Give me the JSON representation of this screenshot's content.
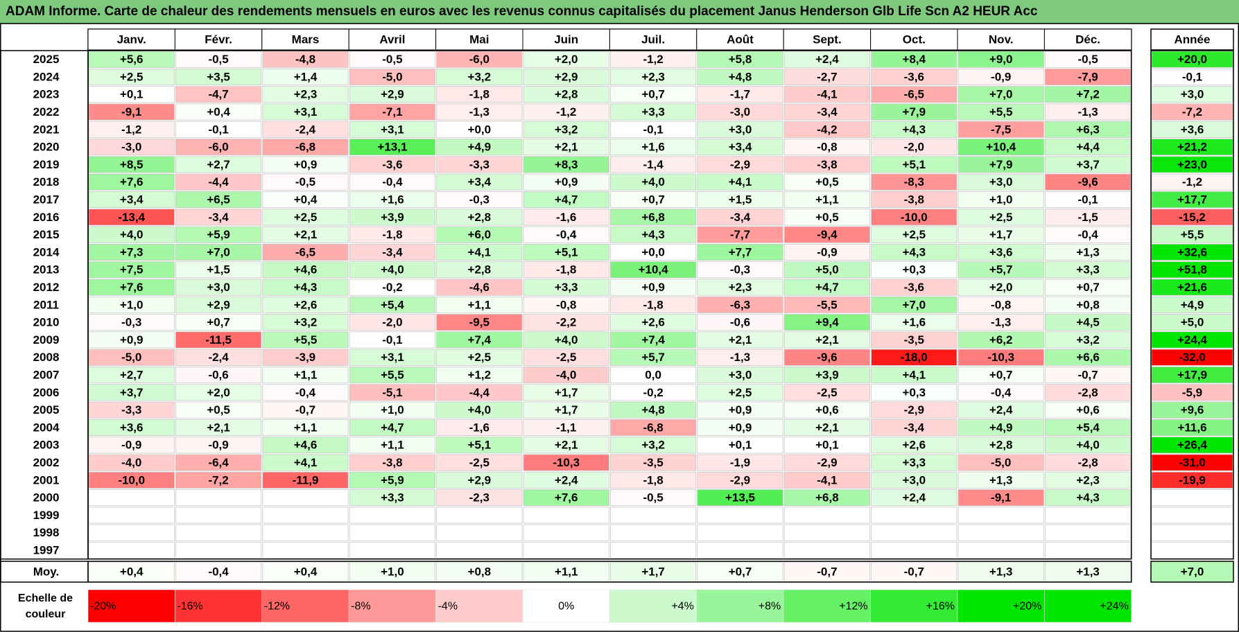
{
  "title": "ADAM Informe. Carte de chaleur des rendements mensuels en euros avec les revenus connus capitalisés du placement Janus Henderson Glb Life Scn A2 HEUR Acc",
  "chart_data": {
    "type": "heatmap",
    "months": [
      "Janv.",
      "Févr.",
      "Mars",
      "Avril",
      "Mai",
      "Juin",
      "Juil.",
      "Août",
      "Sept.",
      "Oct.",
      "Nov.",
      "Déc."
    ],
    "annual_header": "Année",
    "rows": [
      {
        "year": "2025",
        "months": [
          "+5,6",
          "-0,5",
          "-4,8",
          "-0,5",
          "-6,0",
          "+2,0",
          "-1,2",
          "+5,8",
          "+2,4",
          "+8,4",
          "+9,0",
          "-0,5"
        ],
        "annual": "+20,0"
      },
      {
        "year": "2024",
        "months": [
          "+2,5",
          "+3,5",
          "+1,4",
          "-5,0",
          "+3,2",
          "+2,9",
          "+2,3",
          "+4,8",
          "-2,7",
          "-3,6",
          "-0,9",
          "-7,9"
        ],
        "annual": "-0,1"
      },
      {
        "year": "2023",
        "months": [
          "+0,1",
          "-4,7",
          "+2,3",
          "+2,9",
          "-1,8",
          "+2,8",
          "+0,7",
          "-1,7",
          "-4,1",
          "-6,5",
          "+7,0",
          "+7,2"
        ],
        "annual": "+3,0"
      },
      {
        "year": "2022",
        "months": [
          "-9,1",
          "+0,4",
          "+3,1",
          "-7,1",
          "-1,3",
          "-1,2",
          "+3,3",
          "-3,0",
          "-3,4",
          "+7,9",
          "+5,5",
          "-1,3"
        ],
        "annual": "-7,2"
      },
      {
        "year": "2021",
        "months": [
          "-1,2",
          "-0,1",
          "-2,4",
          "+3,1",
          "+0,0",
          "+3,2",
          "-0,1",
          "+3,0",
          "-4,2",
          "+4,3",
          "-7,5",
          "+6,3"
        ],
        "annual": "+3,6"
      },
      {
        "year": "2020",
        "months": [
          "-3,0",
          "-6,0",
          "-6,8",
          "+13,1",
          "+4,9",
          "+2,1",
          "+1,6",
          "+3,4",
          "-0,8",
          "-2,0",
          "+10,4",
          "+4,4"
        ],
        "annual": "+21,2"
      },
      {
        "year": "2019",
        "months": [
          "+8,5",
          "+2,7",
          "+0,9",
          "-3,6",
          "-3,3",
          "+8,3",
          "-1,4",
          "-2,9",
          "-3,8",
          "+5,1",
          "+7,9",
          "+3,7"
        ],
        "annual": "+23,0"
      },
      {
        "year": "2018",
        "months": [
          "+7,6",
          "-4,4",
          "-0,5",
          "-0,4",
          "+3,4",
          "+0,9",
          "+4,0",
          "+4,1",
          "+0,5",
          "-8,3",
          "+3,0",
          "-9,6"
        ],
        "annual": "-1,2"
      },
      {
        "year": "2017",
        "months": [
          "+3,4",
          "+6,5",
          "+0,4",
          "+1,6",
          "-0,3",
          "+4,7",
          "+0,7",
          "+1,5",
          "+1,1",
          "-3,8",
          "+1,0",
          "-0,1"
        ],
        "annual": "+17,7"
      },
      {
        "year": "2016",
        "months": [
          "-13,4",
          "-3,4",
          "+2,5",
          "+3,9",
          "+2,8",
          "-1,6",
          "+6,8",
          "-3,4",
          "+0,5",
          "-10,0",
          "+2,5",
          "-1,5"
        ],
        "annual": "-15,2"
      },
      {
        "year": "2015",
        "months": [
          "+4,0",
          "+5,9",
          "+2,1",
          "-1,8",
          "+6,0",
          "-0,4",
          "+4,3",
          "-7,7",
          "-9,4",
          "+2,5",
          "+1,7",
          "-0,4"
        ],
        "annual": "+5,5"
      },
      {
        "year": "2014",
        "months": [
          "+7,3",
          "+7,0",
          "-6,5",
          "-3,4",
          "+4,1",
          "+5,1",
          "+0,0",
          "+7,7",
          "-0,9",
          "+4,3",
          "+3,6",
          "+1,3"
        ],
        "annual": "+32,6"
      },
      {
        "year": "2013",
        "months": [
          "+7,5",
          "+1,5",
          "+4,6",
          "+4,0",
          "+2,8",
          "-1,8",
          "+10,4",
          "-0,3",
          "+5,0",
          "+0,3",
          "+5,7",
          "+3,3"
        ],
        "annual": "+51,8"
      },
      {
        "year": "2012",
        "months": [
          "+7,6",
          "+3,0",
          "+4,3",
          "-0,2",
          "-4,6",
          "+3,3",
          "+0,9",
          "+2,3",
          "+4,7",
          "-3,6",
          "+2,0",
          "+0,7"
        ],
        "annual": "+21,6"
      },
      {
        "year": "2011",
        "months": [
          "+1,0",
          "+2,9",
          "+2,6",
          "+5,4",
          "+1,1",
          "-0,8",
          "-1,8",
          "-6,3",
          "-5,5",
          "+7,0",
          "-0,8",
          "+0,8"
        ],
        "annual": "+4,9"
      },
      {
        "year": "2010",
        "months": [
          "-0,3",
          "+0,7",
          "+3,2",
          "-2,0",
          "-9,5",
          "-2,2",
          "+2,6",
          "-0,6",
          "+9,4",
          "+1,6",
          "-1,3",
          "+4,5"
        ],
        "annual": "+5,0"
      },
      {
        "year": "2009",
        "months": [
          "+0,9",
          "-11,5",
          "+5,5",
          "-0,1",
          "+7,4",
          "+4,0",
          "+7,4",
          "+2,1",
          "+2,1",
          "-3,5",
          "+6,2",
          "+3,2"
        ],
        "annual": "+24,4"
      },
      {
        "year": "2008",
        "months": [
          "-5,0",
          "-2,4",
          "-3,9",
          "+3,1",
          "+2,5",
          "-2,5",
          "+5,7",
          "-1,3",
          "-9,6",
          "-18,0",
          "-10,3",
          "+6,6"
        ],
        "annual": "-32,0"
      },
      {
        "year": "2007",
        "months": [
          "+2,7",
          "-0,6",
          "+1,1",
          "+5,5",
          "+1,2",
          "-4,0",
          "0,0",
          "+3,0",
          "+3,9",
          "+4,1",
          "+0,7",
          "-0,7"
        ],
        "annual": "+17,9"
      },
      {
        "year": "2006",
        "months": [
          "+3,7",
          "+2,0",
          "-0,4",
          "-5,1",
          "-4,4",
          "+1,7",
          "-0,2",
          "+2,5",
          "-2,5",
          "+0,3",
          "-0,4",
          "-2,8"
        ],
        "annual": "-5,9"
      },
      {
        "year": "2005",
        "months": [
          "-3,3",
          "+0,5",
          "-0,7",
          "+1,0",
          "+4,0",
          "+1,7",
          "+4,8",
          "+0,9",
          "+0,6",
          "-2,9",
          "+2,4",
          "+0,6"
        ],
        "annual": "+9,6"
      },
      {
        "year": "2004",
        "months": [
          "+3,6",
          "+2,1",
          "+1,1",
          "+4,7",
          "-1,6",
          "-1,1",
          "-6,8",
          "+0,9",
          "+2,1",
          "-3,4",
          "+4,9",
          "+5,4"
        ],
        "annual": "+11,6"
      },
      {
        "year": "2003",
        "months": [
          "-0,9",
          "-0,9",
          "+4,6",
          "+1,1",
          "+5,1",
          "+2,1",
          "+3,2",
          "+0,1",
          "+0,1",
          "+2,6",
          "+2,8",
          "+4,0"
        ],
        "annual": "+26,4"
      },
      {
        "year": "2002",
        "months": [
          "-4,0",
          "-6,4",
          "+4,1",
          "-3,8",
          "-2,5",
          "-10,3",
          "-3,5",
          "-1,9",
          "-2,9",
          "+3,3",
          "-5,0",
          "-2,8"
        ],
        "annual": "-31,0"
      },
      {
        "year": "2001",
        "months": [
          "-10,0",
          "-7,2",
          "-11,9",
          "+5,9",
          "+2,9",
          "+2,4",
          "-1,8",
          "-2,9",
          "-4,1",
          "+3,0",
          "+1,3",
          "+2,3"
        ],
        "annual": "-19,9"
      },
      {
        "year": "2000",
        "months": [
          "",
          "",
          "",
          "+3,3",
          "-2,3",
          "+7,6",
          "-0,5",
          "+13,5",
          "+6,8",
          "+2,4",
          "-9,1",
          "+4,3"
        ],
        "annual": ""
      },
      {
        "year": "1999",
        "months": [
          "",
          "",
          "",
          "",
          "",
          "",
          "",
          "",
          "",
          "",
          "",
          ""
        ],
        "annual": ""
      },
      {
        "year": "1998",
        "months": [
          "",
          "",
          "",
          "",
          "",
          "",
          "",
          "",
          "",
          "",
          "",
          ""
        ],
        "annual": ""
      },
      {
        "year": "1997",
        "months": [
          "",
          "",
          "",
          "",
          "",
          "",
          "",
          "",
          "",
          "",
          "",
          ""
        ],
        "annual": ""
      }
    ],
    "average": {
      "label": "Moy.",
      "months": [
        "+0,4",
        "-0,4",
        "+0,4",
        "+1,0",
        "+0,8",
        "+1,1",
        "+1,7",
        "+0,7",
        "-0,7",
        "-0,7",
        "+1,3",
        "+1,3"
      ],
      "annual": "+7,0"
    },
    "scale_label_line1": "Echelle de",
    "scale_label_line2": "couleur",
    "scale": [
      "-20%",
      "-16%",
      "-12%",
      "-8%",
      "-4%",
      "0%",
      "+4%",
      "+8%",
      "+12%",
      "+16%",
      "+20%",
      "+24%"
    ],
    "colors": {
      "max_red": "#ff0000",
      "max_green": "#00e600",
      "neutral": "#ffffff",
      "title_bg": "#7fc97f"
    }
  }
}
